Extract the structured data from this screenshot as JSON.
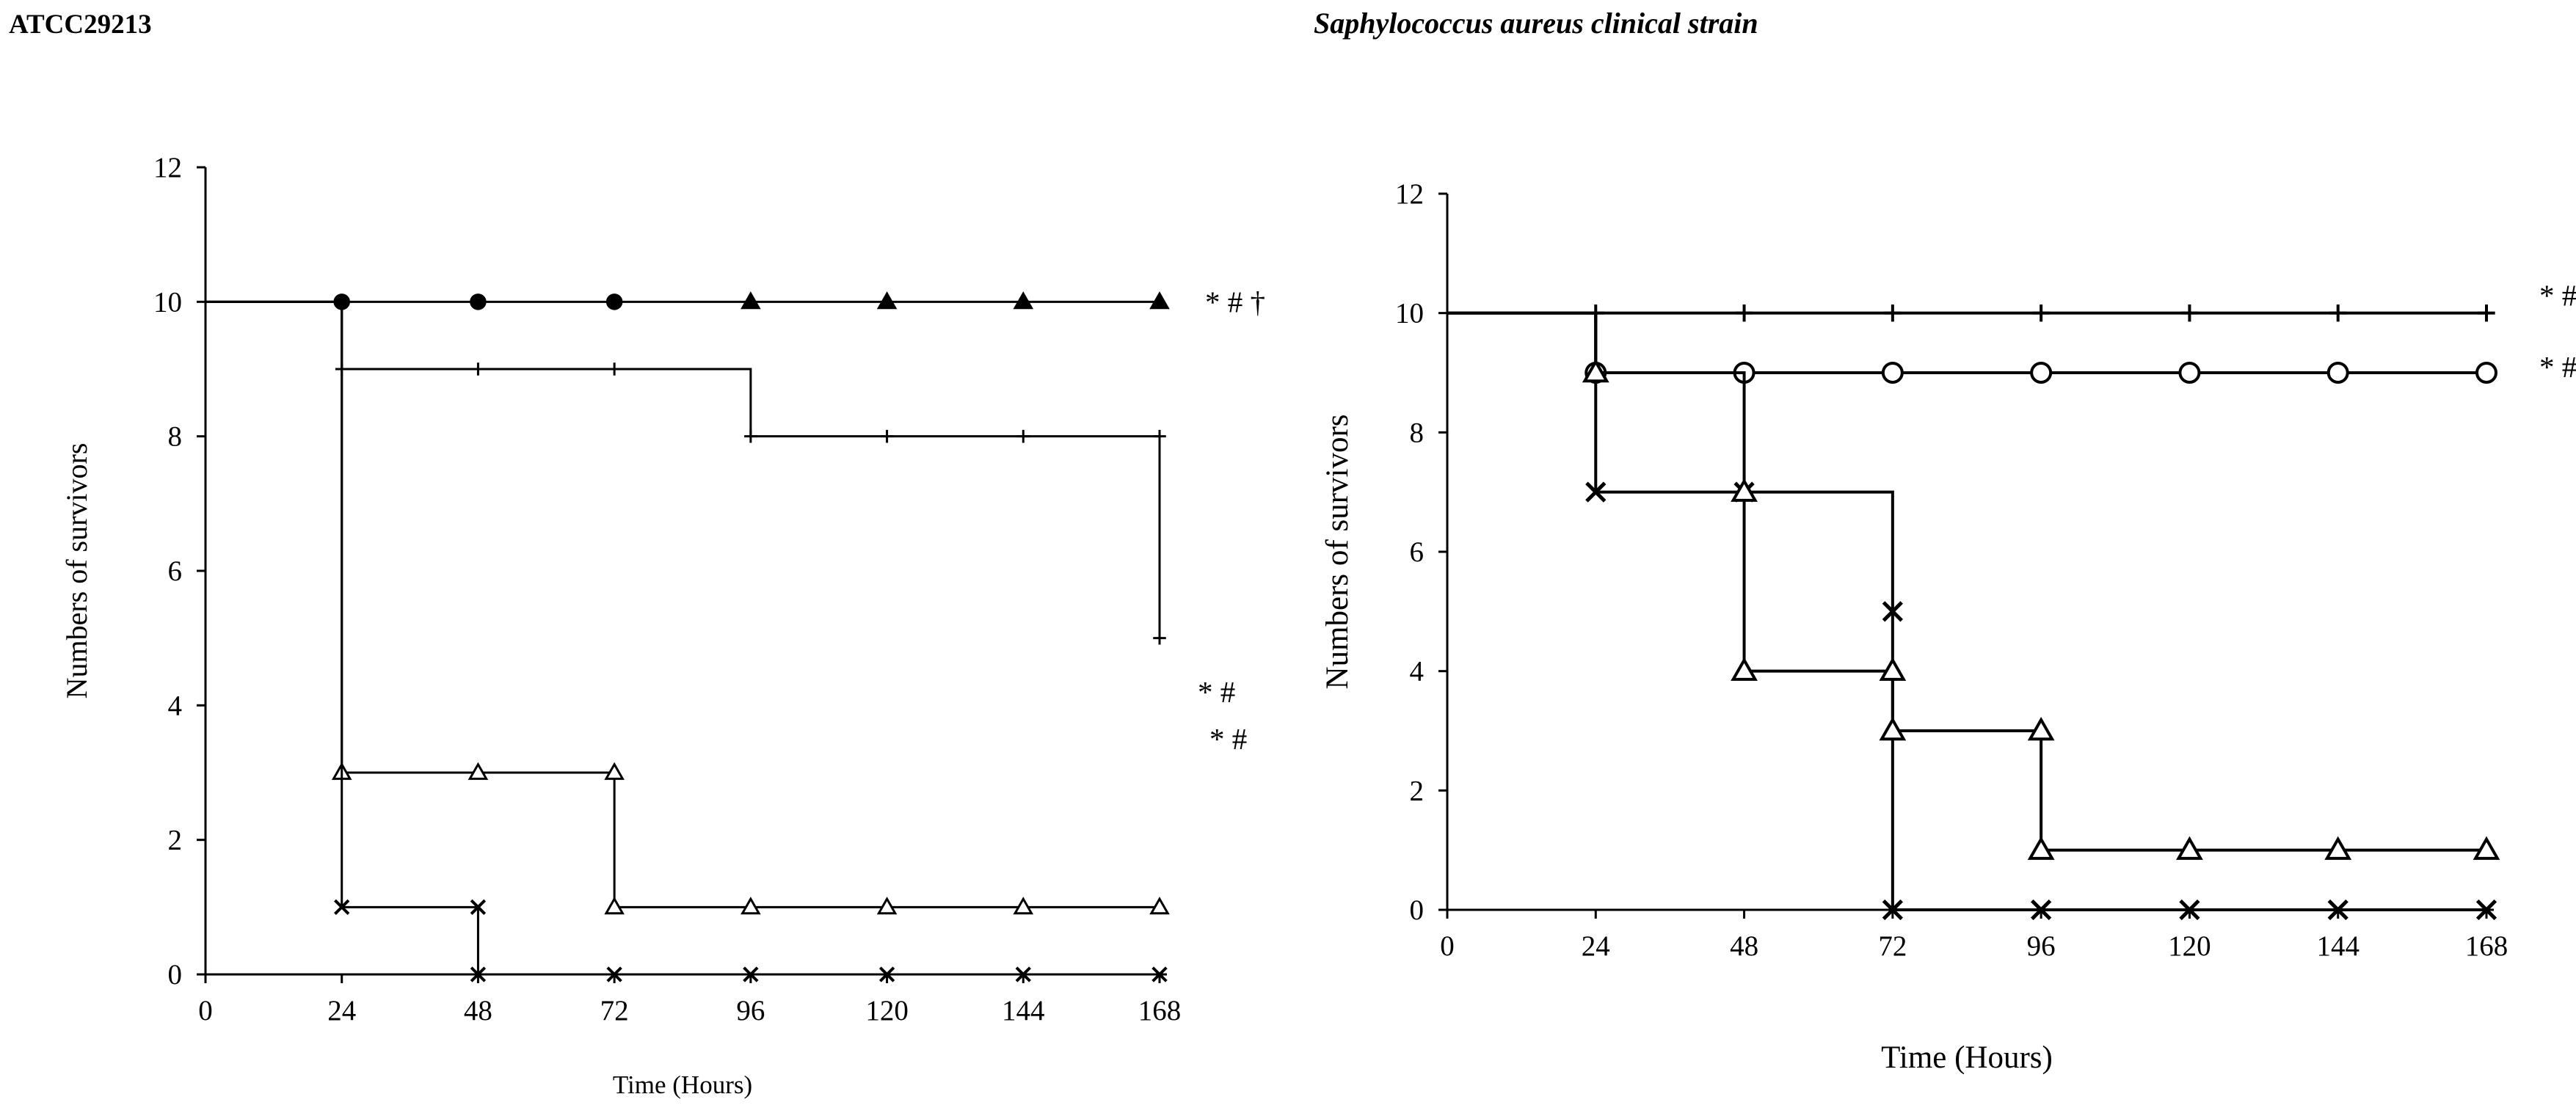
{
  "chart_data": [
    {
      "type": "line",
      "title": "ATCC29213",
      "xlabel": "Time (Hours)",
      "ylabel": "Numbers of survivors",
      "xlim": [
        0,
        168
      ],
      "ylim": [
        0,
        12
      ],
      "xticks": [
        0,
        24,
        48,
        72,
        96,
        120,
        144,
        168
      ],
      "yticks": [
        0,
        2,
        4,
        6,
        8,
        10,
        12
      ],
      "step": true,
      "series": [
        {
          "marker": "circle-filled",
          "x": [
            0,
            24,
            48,
            72
          ],
          "y": [
            10,
            10,
            10,
            10
          ]
        },
        {
          "marker": "triangle-filled",
          "x": [
            72,
            96,
            120,
            144,
            168
          ],
          "y": [
            10,
            10,
            10,
            10,
            10
          ]
        },
        {
          "marker": "plus",
          "x": [
            0,
            24
          ],
          "y": [
            10,
            10
          ]
        },
        {
          "marker": "plus",
          "x": [
            0,
            24,
            48,
            72,
            96,
            120,
            144,
            168,
            168
          ],
          "y": [
            10,
            9,
            9,
            9,
            8,
            8,
            8,
            8,
            5
          ]
        },
        {
          "marker": "triangle",
          "x": [
            0,
            24,
            48,
            72,
            72,
            96,
            120,
            144,
            168
          ],
          "y": [
            10,
            3,
            3,
            3,
            1,
            1,
            1,
            1,
            1
          ]
        },
        {
          "marker": "x",
          "x": [
            0,
            24,
            48,
            48,
            72,
            96,
            120,
            144,
            168
          ],
          "y": [
            10,
            1,
            1,
            0,
            0,
            0,
            0,
            0,
            0
          ]
        }
      ],
      "annotations": [
        {
          "text": "* # †",
          "x": 168,
          "y": 10
        },
        {
          "text": "* #",
          "x": 168,
          "y": 4.2
        },
        {
          "text": "* #",
          "x": 168,
          "y": 3.5
        }
      ]
    },
    {
      "type": "line",
      "title": "Saphylococcus aureus clinical strain",
      "xlabel": "Time (Hours)",
      "ylabel": "Numbers of survivors",
      "xlim": [
        0,
        168
      ],
      "ylim": [
        0,
        12
      ],
      "xticks": [
        0,
        24,
        48,
        72,
        96,
        120,
        144,
        168
      ],
      "yticks": [
        0,
        2,
        4,
        6,
        8,
        10,
        12
      ],
      "step": true,
      "series": [
        {
          "marker": "plus",
          "x": [
            0,
            24,
            48,
            72,
            96,
            120,
            144,
            168
          ],
          "y": [
            10,
            10,
            10,
            10,
            10,
            10,
            10,
            10
          ]
        },
        {
          "marker": "circle",
          "x": [
            0,
            24,
            48,
            72,
            96,
            120,
            144,
            168
          ],
          "y": [
            10,
            9,
            9,
            9,
            9,
            9,
            9,
            9
          ]
        },
        {
          "marker": "x",
          "x": [
            0,
            24,
            48,
            72,
            72,
            96,
            120,
            144,
            168
          ],
          "y": [
            10,
            7,
            7,
            5,
            0,
            0,
            0,
            0,
            0
          ]
        },
        {
          "marker": "triangle",
          "x": [
            0,
            24,
            48,
            48,
            72,
            72,
            96,
            96,
            120,
            144,
            168
          ],
          "y": [
            10,
            9,
            7,
            4,
            4,
            3,
            3,
            1,
            1,
            1,
            1
          ]
        }
      ],
      "annotations": [
        {
          "text": "* #",
          "x": 168,
          "y": 10.3
        },
        {
          "text": "* #",
          "x": 168,
          "y": 9.1
        }
      ]
    }
  ]
}
